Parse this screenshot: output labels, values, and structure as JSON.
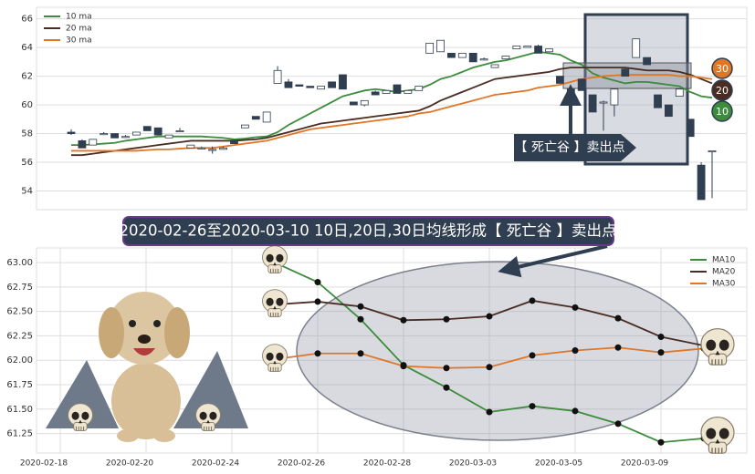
{
  "chart_data": [
    {
      "type": "candlestick",
      "open": [
        58.1,
        57.5,
        57.2,
        58.0,
        58.0,
        57.8,
        57.9,
        58.5,
        58.4,
        57.7,
        58.2,
        57.0,
        57.0,
        56.9,
        56.9,
        57.5,
        58.4,
        59.2,
        58.8,
        61.5,
        61.6,
        61.4,
        61.3,
        61.1,
        61.6,
        62.1,
        60.2,
        60.0,
        60.9,
        60.8,
        61.4,
        60.8,
        61.0,
        63.6,
        63.7,
        63.6,
        63.3,
        63.6,
        63.2,
        62.6,
        63.2,
        63.9,
        64.0,
        64.1,
        63.7,
        62.0,
        61.1,
        61.8,
        60.7,
        60.2,
        60.0,
        62.5,
        63.3,
        63.3,
        60.7,
        60.0,
        60.6,
        59.0,
        55.8,
        56.8
      ],
      "high": [
        58.3,
        57.6,
        57.6,
        58.1,
        58.0,
        57.9,
        58.1,
        58.5,
        58.4,
        57.9,
        58.4,
        57.2,
        57.1,
        57.1,
        57.1,
        57.5,
        58.6,
        59.2,
        59.5,
        62.7,
        61.8,
        61.4,
        61.3,
        61.3,
        61.6,
        62.1,
        60.2,
        60.3,
        61.0,
        61.0,
        61.4,
        61.0,
        61.3,
        64.3,
        64.5,
        63.6,
        63.6,
        63.6,
        63.3,
        62.8,
        63.4,
        64.1,
        64.1,
        64.2,
        63.9,
        62.0,
        61.1,
        61.8,
        60.7,
        60.3,
        61.1,
        62.6,
        64.6,
        63.3,
        60.7,
        60.0,
        61.1,
        59.0,
        56.0,
        56.8
      ],
      "low": [
        57.9,
        57.0,
        57.2,
        57.9,
        57.7,
        57.7,
        57.9,
        58.2,
        57.9,
        57.7,
        58.1,
        57.0,
        56.9,
        56.6,
        56.9,
        57.3,
        58.4,
        59.0,
        58.8,
        61.5,
        61.2,
        61.3,
        61.2,
        61.1,
        61.2,
        61.1,
        60.0,
        59.9,
        60.7,
        60.8,
        60.8,
        60.8,
        61.0,
        63.6,
        63.7,
        63.3,
        63.3,
        63.0,
        63.1,
        62.6,
        63.2,
        63.9,
        64.0,
        63.6,
        63.7,
        61.5,
        60.7,
        61.0,
        59.5,
        58.2,
        59.2,
        62.0,
        63.3,
        62.8,
        59.8,
        59.2,
        60.6,
        57.8,
        53.4,
        53.5
      ],
      "close": [
        58.0,
        57.0,
        57.6,
        58.0,
        57.7,
        57.8,
        58.1,
        58.2,
        57.9,
        57.9,
        58.2,
        57.2,
        57.0,
        56.9,
        57.0,
        57.3,
        58.6,
        59.0,
        59.5,
        62.4,
        61.2,
        61.3,
        61.2,
        61.3,
        61.2,
        61.1,
        60.0,
        60.3,
        60.7,
        61.0,
        60.8,
        61.0,
        61.3,
        64.3,
        64.5,
        63.3,
        63.6,
        63.0,
        63.2,
        62.8,
        63.4,
        64.1,
        64.1,
        63.6,
        63.9,
        61.5,
        60.7,
        61.0,
        59.5,
        60.2,
        61.1,
        62.0,
        64.6,
        62.8,
        59.8,
        59.2,
        61.1,
        57.8,
        53.4,
        56.8
      ],
      "candle_color": "#2f3e50",
      "series": [
        {
          "name": "10 ma",
          "color": "#3d8b3d",
          "values": [
            57.2,
            57.2,
            57.25,
            57.3,
            57.35,
            57.5,
            57.6,
            57.7,
            57.8,
            57.8,
            57.8,
            57.8,
            57.8,
            57.75,
            57.7,
            57.6,
            57.65,
            57.75,
            57.8,
            58.1,
            58.6,
            59.0,
            59.4,
            59.8,
            60.2,
            60.6,
            60.8,
            61.0,
            61.1,
            61.0,
            60.9,
            61.0,
            61.1,
            61.4,
            61.8,
            62.0,
            62.3,
            62.6,
            62.8,
            63.0,
            63.1,
            63.3,
            63.5,
            63.7,
            63.6,
            63.5,
            63.1,
            62.8,
            62.2,
            61.9,
            61.7,
            61.5,
            61.6,
            61.6,
            61.5,
            61.4,
            61.3,
            60.9,
            60.6,
            60.5
          ]
        },
        {
          "name": "20 ma",
          "color": "#4a2c22",
          "values": [
            56.5,
            56.5,
            56.6,
            56.7,
            56.8,
            56.9,
            57.0,
            57.1,
            57.2,
            57.3,
            57.4,
            57.5,
            57.5,
            57.5,
            57.5,
            57.5,
            57.55,
            57.6,
            57.7,
            57.9,
            58.1,
            58.3,
            58.5,
            58.7,
            58.8,
            58.9,
            59.0,
            59.1,
            59.2,
            59.3,
            59.4,
            59.5,
            59.6,
            59.9,
            60.3,
            60.6,
            60.9,
            61.2,
            61.5,
            61.8,
            61.9,
            62.0,
            62.1,
            62.2,
            62.3,
            62.5,
            62.6,
            62.6,
            62.6,
            62.6,
            62.6,
            62.6,
            62.5,
            62.4,
            62.4,
            62.4,
            62.3,
            62.1,
            61.8,
            61.5
          ]
        },
        {
          "name": "30 ma",
          "color": "#e07626",
          "values": [
            56.8,
            56.8,
            56.8,
            56.8,
            56.8,
            56.8,
            56.8,
            56.85,
            56.9,
            56.9,
            56.95,
            57.0,
            57.0,
            57.0,
            57.1,
            57.2,
            57.3,
            57.4,
            57.5,
            57.7,
            57.9,
            58.1,
            58.3,
            58.4,
            58.5,
            58.6,
            58.7,
            58.8,
            58.9,
            59.0,
            59.1,
            59.2,
            59.4,
            59.5,
            59.7,
            59.9,
            60.1,
            60.3,
            60.5,
            60.7,
            60.8,
            60.9,
            61.0,
            61.2,
            61.3,
            61.4,
            61.6,
            61.8,
            61.9,
            62.0,
            62.05,
            62.1,
            62.1,
            62.1,
            62.1,
            62.1,
            62.0,
            62.0,
            61.9,
            61.8
          ]
        }
      ],
      "ylim": [
        52.7,
        66.8
      ],
      "yticks": [
        54,
        56,
        58,
        60,
        62,
        64,
        66
      ],
      "grid": true,
      "legend": "upper left",
      "callout": "【 死亡谷 】卖出点",
      "badges": [
        {
          "text": "30",
          "color": "#e07626"
        },
        {
          "text": "20",
          "color": "#4a2c22"
        },
        {
          "text": "10",
          "color": "#3d8b3d"
        }
      ]
    },
    {
      "type": "line",
      "title": "2020-02-26至2020-03-10 10日,20日,30日均线形成【 死亡谷 】卖出点",
      "categories": [
        "2020-02-18",
        null,
        "2020-02-20",
        null,
        "2020-02-24",
        null,
        "2020-02-26",
        null,
        "2020-02-28",
        null,
        "2020-03-03",
        null,
        "2020-03-05",
        null,
        "2020-03-09",
        null
      ],
      "series": [
        {
          "name": "MA10",
          "color": "#3d8b3d",
          "values": [
            null,
            null,
            null,
            null,
            null,
            63.0,
            62.8,
            62.42,
            61.95,
            61.72,
            61.47,
            61.53,
            61.48,
            61.35,
            61.16,
            61.2
          ]
        },
        {
          "name": "MA20",
          "color": "#4a2c22",
          "values": [
            null,
            null,
            null,
            null,
            null,
            62.57,
            62.6,
            62.55,
            62.41,
            62.42,
            62.45,
            62.61,
            62.54,
            62.43,
            62.24,
            62.15
          ]
        },
        {
          "name": "MA30",
          "color": "#e07626",
          "values": [
            null,
            null,
            null,
            null,
            null,
            62.01,
            62.07,
            62.07,
            61.94,
            61.92,
            61.93,
            62.05,
            62.1,
            62.13,
            62.08,
            62.12
          ]
        }
      ],
      "ylim": [
        61.05,
        63.15
      ],
      "yticks": [
        61.25,
        {
          "value": 61.5,
          "label": "61.50"
        },
        61.75,
        {
          "value": 62,
          "label": "62.00"
        },
        62.25,
        {
          "value": 62.5,
          "label": "62.50"
        },
        62.75,
        {
          "value": 63,
          "label": "63.00"
        }
      ],
      "grid": true,
      "legend": "upper right",
      "markers": true
    }
  ]
}
